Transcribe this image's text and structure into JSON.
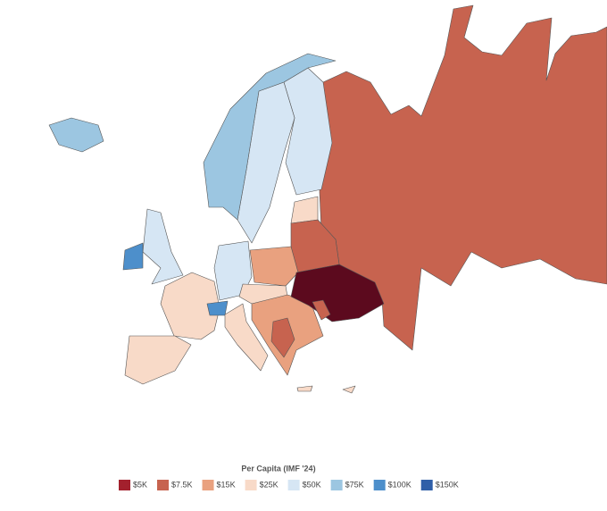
{
  "legend": {
    "title": "Per Capita (IMF '24)",
    "items": [
      {
        "label": "$5K",
        "color": "#a3202d"
      },
      {
        "label": "$7.5K",
        "color": "#c7634f"
      },
      {
        "label": "$15K",
        "color": "#e9a17f"
      },
      {
        "label": "$25K",
        "color": "#f8dac8"
      },
      {
        "label": "$50K",
        "color": "#d6e6f4"
      },
      {
        "label": "$75K",
        "color": "#9cc6e1"
      },
      {
        "label": "$100K",
        "color": "#4d8fcb"
      },
      {
        "label": "$150K",
        "color": "#2f5fa8"
      }
    ]
  }
}
